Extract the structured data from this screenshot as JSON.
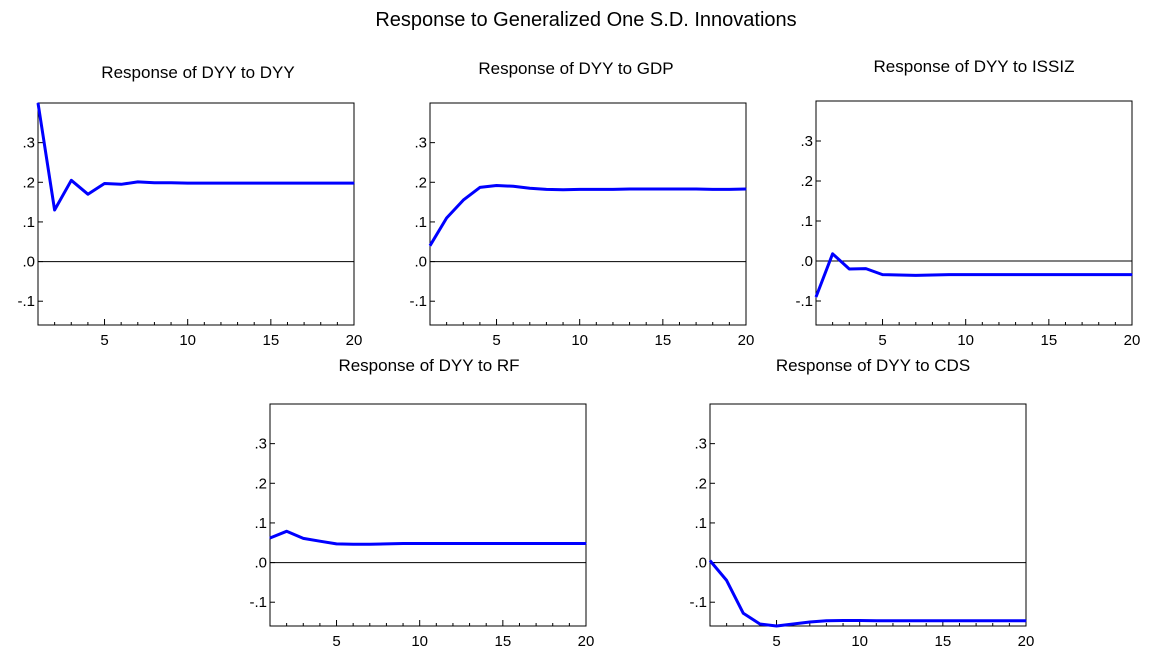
{
  "title": "Response to Generalized One S.D. Innovations",
  "colors": {
    "line": "#0000ff",
    "axis": "#000000",
    "zero_line": "#000000",
    "background": "#ffffff"
  },
  "chart_data": [
    {
      "type": "line",
      "title": "Response of DYY to DYY",
      "xlim": [
        1,
        20
      ],
      "ylim": [
        -0.16,
        0.4
      ],
      "xticks": [
        5,
        10,
        15,
        20
      ],
      "xtick_labels": [
        "5",
        "10",
        "15",
        "20"
      ],
      "yticks": [
        0.3,
        0.2,
        0.1,
        0.0,
        -0.1
      ],
      "ytick_labels": [
        ".3",
        ".2",
        ".1",
        ".0",
        "-.1"
      ],
      "zero_line": true,
      "grid": false,
      "x": [
        1,
        2,
        3,
        4,
        5,
        6,
        7,
        8,
        9,
        10,
        11,
        12,
        13,
        14,
        15,
        16,
        17,
        18,
        19,
        20
      ],
      "series": [
        {
          "values": [
            0.4,
            0.13,
            0.205,
            0.17,
            0.197,
            0.195,
            0.201,
            0.199,
            0.199,
            0.198,
            0.198,
            0.198,
            0.198,
            0.198,
            0.198,
            0.198,
            0.198,
            0.198,
            0.198,
            0.198
          ]
        }
      ]
    },
    {
      "type": "line",
      "title": "Response of DYY to GDP",
      "xlim": [
        1,
        20
      ],
      "ylim": [
        -0.16,
        0.4
      ],
      "xticks": [
        5,
        10,
        15,
        20
      ],
      "xtick_labels": [
        "5",
        "10",
        "15",
        "20"
      ],
      "yticks": [
        0.3,
        0.2,
        0.1,
        0.0,
        -0.1
      ],
      "ytick_labels": [
        ".3",
        ".2",
        ".1",
        ".0",
        "-.1"
      ],
      "zero_line": true,
      "grid": false,
      "x": [
        1,
        2,
        3,
        4,
        5,
        6,
        7,
        8,
        9,
        10,
        11,
        12,
        13,
        14,
        15,
        16,
        17,
        18,
        19,
        20
      ],
      "series": [
        {
          "values": [
            0.04,
            0.11,
            0.155,
            0.187,
            0.192,
            0.19,
            0.185,
            0.182,
            0.181,
            0.182,
            0.182,
            0.182,
            0.183,
            0.183,
            0.183,
            0.183,
            0.183,
            0.182,
            0.182,
            0.183
          ]
        }
      ]
    },
    {
      "type": "line",
      "title": "Response of DYY to ISSIZ",
      "xlim": [
        1,
        20
      ],
      "ylim": [
        -0.16,
        0.4
      ],
      "xticks": [
        5,
        10,
        15,
        20
      ],
      "xtick_labels": [
        "5",
        "10",
        "15",
        "20"
      ],
      "yticks": [
        0.3,
        0.2,
        0.1,
        0.0,
        -0.1
      ],
      "ytick_labels": [
        ".3",
        ".2",
        ".1",
        ".0",
        "-.1"
      ],
      "zero_line": true,
      "grid": false,
      "x": [
        1,
        2,
        3,
        4,
        5,
        6,
        7,
        8,
        9,
        10,
        11,
        12,
        13,
        14,
        15,
        16,
        17,
        18,
        19,
        20
      ],
      "series": [
        {
          "values": [
            -0.09,
            0.018,
            -0.02,
            -0.019,
            -0.034,
            -0.035,
            -0.036,
            -0.035,
            -0.034,
            -0.034,
            -0.034,
            -0.034,
            -0.034,
            -0.034,
            -0.034,
            -0.034,
            -0.034,
            -0.034,
            -0.034,
            -0.034
          ]
        }
      ]
    },
    {
      "type": "line",
      "title": "Response of DYY to RF",
      "xlim": [
        1,
        20
      ],
      "ylim": [
        -0.16,
        0.4
      ],
      "xticks": [
        5,
        10,
        15,
        20
      ],
      "xtick_labels": [
        "5",
        "10",
        "15",
        "20"
      ],
      "yticks": [
        0.3,
        0.2,
        0.1,
        0.0,
        -0.1
      ],
      "ytick_labels": [
        ".3",
        ".2",
        ".1",
        ".0",
        "-.1"
      ],
      "zero_line": true,
      "grid": false,
      "x": [
        1,
        2,
        3,
        4,
        5,
        6,
        7,
        8,
        9,
        10,
        11,
        12,
        13,
        14,
        15,
        16,
        17,
        18,
        19,
        20
      ],
      "series": [
        {
          "values": [
            0.062,
            0.079,
            0.061,
            0.054,
            0.047,
            0.046,
            0.046,
            0.047,
            0.048,
            0.048,
            0.048,
            0.048,
            0.048,
            0.048,
            0.048,
            0.048,
            0.048,
            0.048,
            0.048,
            0.048
          ]
        }
      ]
    },
    {
      "type": "line",
      "title": "Response of DYY to CDS",
      "xlim": [
        1,
        20
      ],
      "ylim": [
        -0.16,
        0.4
      ],
      "xticks": [
        5,
        10,
        15,
        20
      ],
      "xtick_labels": [
        "5",
        "10",
        "15",
        "20"
      ],
      "yticks": [
        0.3,
        0.2,
        0.1,
        0.0,
        -0.1
      ],
      "ytick_labels": [
        ".3",
        ".2",
        ".1",
        ".0",
        "-.1"
      ],
      "zero_line": true,
      "grid": false,
      "x": [
        1,
        2,
        3,
        4,
        5,
        6,
        7,
        8,
        9,
        10,
        11,
        12,
        13,
        14,
        15,
        16,
        17,
        18,
        19,
        20
      ],
      "series": [
        {
          "values": [
            0.005,
            -0.045,
            -0.128,
            -0.155,
            -0.16,
            -0.155,
            -0.15,
            -0.147,
            -0.146,
            -0.146,
            -0.147,
            -0.147,
            -0.147,
            -0.147,
            -0.147,
            -0.147,
            -0.147,
            -0.147,
            -0.147,
            -0.147
          ]
        }
      ]
    }
  ]
}
